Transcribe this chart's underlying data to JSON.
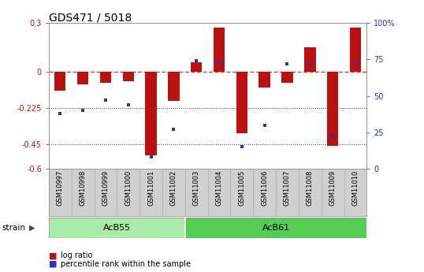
{
  "title": "GDS471 / 5018",
  "samples": [
    "GSM10997",
    "GSM10998",
    "GSM10999",
    "GSM11000",
    "GSM11001",
    "GSM11002",
    "GSM11003",
    "GSM11004",
    "GSM11005",
    "GSM11006",
    "GSM11007",
    "GSM11008",
    "GSM11009",
    "GSM11010"
  ],
  "log_ratio": [
    -0.12,
    -0.08,
    -0.07,
    -0.06,
    -0.52,
    -0.18,
    0.06,
    0.27,
    -0.38,
    -0.1,
    -0.07,
    0.15,
    -0.46,
    0.27
  ],
  "percentile": [
    38,
    40,
    47,
    44,
    8,
    27,
    74,
    73,
    15,
    30,
    72,
    72,
    22,
    72
  ],
  "ylim_left": [
    -0.6,
    0.3
  ],
  "ylim_right": [
    0,
    100
  ],
  "bar_color": "#bb1111",
  "dot_color": "#2233cc",
  "zero_line_color": "#cc3333",
  "dotted_line_color": "#333333",
  "background_color": "#ffffff",
  "plot_bg_color": "#ffffff",
  "label_bg_color": "#d0d0d0",
  "strain_groups": [
    {
      "label": "AcB55",
      "start": 0,
      "end": 5,
      "color": "#aaeaaa"
    },
    {
      "label": "AcB61",
      "start": 6,
      "end": 13,
      "color": "#55cc55"
    }
  ],
  "strain_label": "strain",
  "legend_items": [
    {
      "label": "log ratio",
      "color": "#bb1111"
    },
    {
      "label": "percentile rank within the sample",
      "color": "#2233cc"
    }
  ],
  "yticks_left": [
    0.3,
    0,
    -0.225,
    -0.45,
    -0.6
  ],
  "ytick_labels_left": [
    "0.3",
    "0",
    "-0.225",
    "-0.45",
    "-0.6"
  ],
  "yticks_right": [
    100,
    75,
    50,
    25,
    0
  ],
  "ytick_labels_right": [
    "100%",
    "75",
    "50",
    "25",
    "0"
  ],
  "tick_fontsize": 7,
  "label_fontsize": 7.5,
  "title_fontsize": 10,
  "bar_width": 0.5
}
